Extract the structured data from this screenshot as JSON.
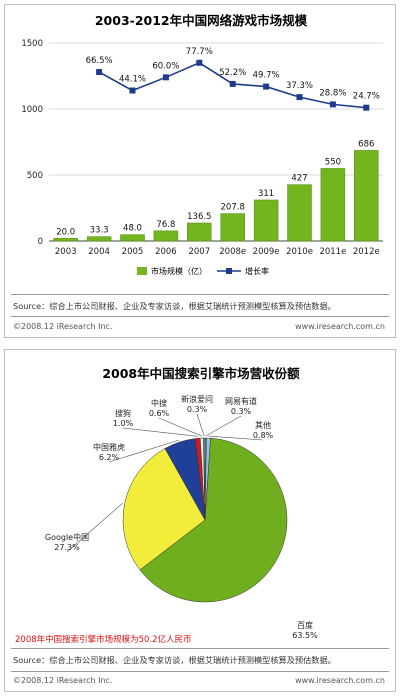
{
  "chart_data": [
    {
      "type": "bar",
      "title": "2003-2012年中国网络游戏市场规模",
      "categories": [
        "2003",
        "2004",
        "2005",
        "2006",
        "2007",
        "2008e",
        "2009e",
        "2010e",
        "2011e",
        "2012e"
      ],
      "series": [
        {
          "name": "市场规模（亿）",
          "type": "bar",
          "color": "#72b51f",
          "values": [
            20.0,
            33.3,
            48.0,
            76.8,
            136.5,
            207.8,
            311,
            427,
            550,
            686
          ],
          "labels": [
            "20.0",
            "33.3",
            "48.0",
            "76.8",
            "136.5",
            "207.8",
            "311",
            "427",
            "550",
            "686"
          ]
        },
        {
          "name": "增长率",
          "type": "line",
          "color": "#1f3c8c",
          "growth_labels": [
            "",
            "66.5%",
            "44.1%",
            "60.0%",
            "77.7%",
            "52.2%",
            "49.7%",
            "37.3%",
            "28.8%",
            "24.7%"
          ],
          "values_on_left_axis": [
            null,
            1280,
            1140,
            1240,
            1350,
            1190,
            1170,
            1090,
            1035,
            1010
          ]
        }
      ],
      "y_ticks": [
        "0",
        "500",
        "1000",
        "1500"
      ],
      "ylim": [
        0,
        1500
      ],
      "legend_position": "bottom-center",
      "source": "Source：综合上市公司财报、企业及专家访谈，根据艾瑞统计预测模型核算及预估数据。",
      "copyright": "©2008.12 iResearch Inc.",
      "website": "www.iresearch.com.cn"
    },
    {
      "type": "pie",
      "title": "2008年中国搜索引擎市场营收份额",
      "slices": [
        {
          "label": "百度",
          "value": 63.5,
          "display": "63.5%",
          "color": "#6fae1f"
        },
        {
          "label": "Google中国",
          "value": 27.3,
          "display": "27.3%",
          "color": "#f2ec3a"
        },
        {
          "label": "中国雅虎",
          "value": 6.2,
          "display": "6.2%",
          "color": "#1f3f98"
        },
        {
          "label": "搜狗",
          "value": 1.0,
          "display": "1.0%",
          "color": "#d21a1a"
        },
        {
          "label": "中搜",
          "value": 0.6,
          "display": "0.6%",
          "color": "#eeeeee"
        },
        {
          "label": "新浪爱问",
          "value": 0.3,
          "display": "0.3%",
          "color": "#8aa8d8"
        },
        {
          "label": "网易有道",
          "value": 0.3,
          "display": "0.3%",
          "color": "#3d8e6b"
        },
        {
          "label": "其他",
          "value": 0.8,
          "display": "0.8%",
          "color": "#9ac0e6"
        }
      ],
      "note": "2008年中国搜索引擎市场规模为50.2亿人民币",
      "source": "Source：综合上市公司财报、企业及专家访谈，根据艾瑞统计预测模型核算及预估数据。",
      "copyright": "©2008.12 iResearch Inc.",
      "website": "www.iresearch.com.cn"
    }
  ]
}
